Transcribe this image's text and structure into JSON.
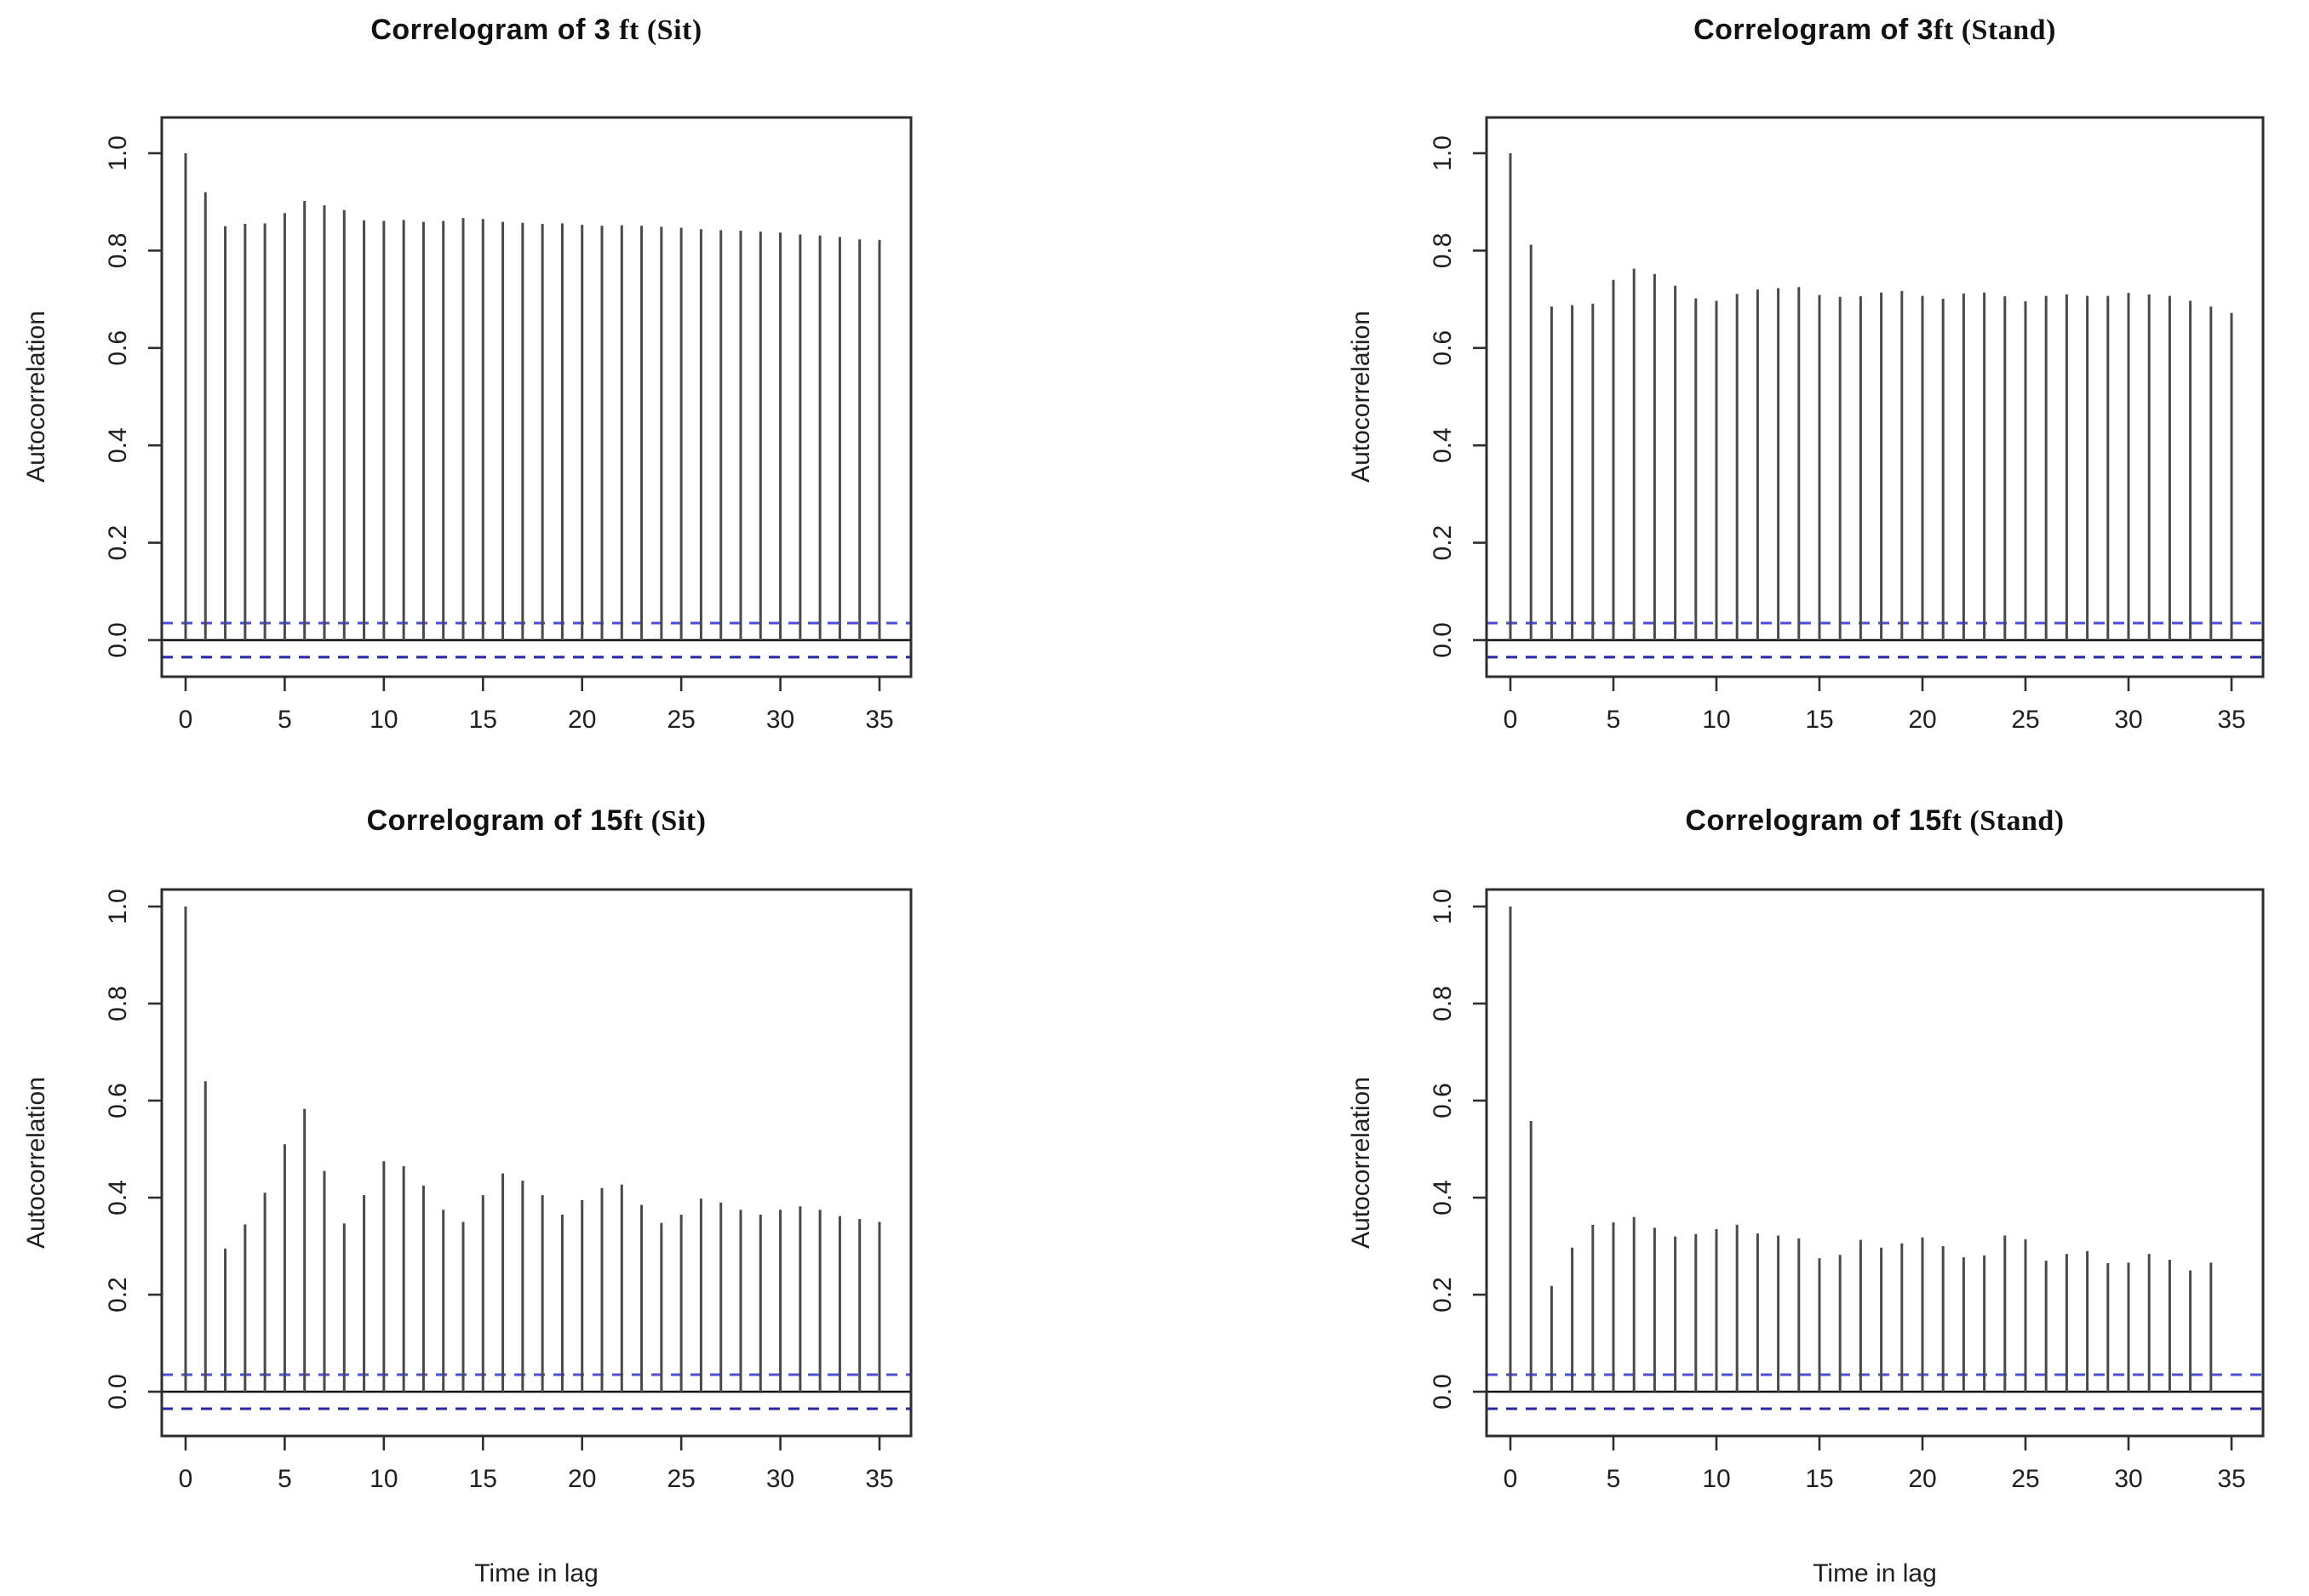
{
  "figure": {
    "background": "#ffffff",
    "bar_color": "#4a4a4a",
    "frame_color": "#2e2e2e",
    "zero_line_color": "#141414",
    "conf_upper_color": "#4c4cdb",
    "conf_lower_color": "#2828a4",
    "text_color": "#1f1f1f"
  },
  "chart_data": [
    {
      "id": "acf-3ft-sit",
      "type": "bar",
      "title": "Correlogram of 3 ft (Sit)",
      "title_sans": "Correlogram of 3 ",
      "title_serif": "ft (Sit)",
      "xlabel": "",
      "ylabel": "Autocorrelation",
      "x_ticks": [
        0,
        5,
        10,
        15,
        20,
        25,
        30,
        35
      ],
      "y_ticks": [
        "0.0",
        "0.2",
        "0.4",
        "0.6",
        "0.8",
        "1.0"
      ],
      "xlim": [
        -1.5,
        36.5
      ],
      "ylim": [
        -0.09,
        1.07
      ],
      "grid": false,
      "legend": "none",
      "conf_upper": 0.035,
      "conf_lower": -0.035,
      "lag_start": 0,
      "values": [
        1.0,
        0.92,
        0.85,
        0.855,
        0.856,
        0.877,
        0.902,
        0.893,
        0.883,
        0.862,
        0.861,
        0.863,
        0.859,
        0.861,
        0.867,
        0.865,
        0.859,
        0.857,
        0.855,
        0.856,
        0.853,
        0.851,
        0.852,
        0.851,
        0.849,
        0.847,
        0.844,
        0.842,
        0.841,
        0.839,
        0.837,
        0.833,
        0.831,
        0.828,
        0.823,
        0.822
      ]
    },
    {
      "id": "acf-3ft-stand",
      "type": "bar",
      "title": "Correlogram of 3ft (Stand)",
      "title_sans": "Correlogram of 3",
      "title_serif": "ft (Stand)",
      "xlabel": "",
      "ylabel": "Autocorrelation",
      "x_ticks": [
        0,
        5,
        10,
        15,
        20,
        25,
        30,
        35
      ],
      "y_ticks": [
        "0.0",
        "0.2",
        "0.4",
        "0.6",
        "0.8",
        "1.0"
      ],
      "xlim": [
        -1.5,
        36.5
      ],
      "ylim": [
        -0.09,
        1.07
      ],
      "grid": false,
      "legend": "none",
      "conf_upper": 0.035,
      "conf_lower": -0.035,
      "lag_start": 0,
      "values": [
        1.0,
        0.812,
        0.685,
        0.688,
        0.691,
        0.74,
        0.763,
        0.752,
        0.728,
        0.702,
        0.697,
        0.711,
        0.72,
        0.723,
        0.725,
        0.709,
        0.705,
        0.706,
        0.714,
        0.717,
        0.707,
        0.701,
        0.712,
        0.714,
        0.706,
        0.696,
        0.707,
        0.71,
        0.707,
        0.707,
        0.713,
        0.71,
        0.707,
        0.697,
        0.685,
        0.672
      ]
    },
    {
      "id": "acf-15ft-sit",
      "type": "bar",
      "title": "Correlogram of 15ft (Sit)",
      "title_sans": "Correlogram of 15",
      "title_serif": "ft (Sit)",
      "xlabel": "Time in lag",
      "ylabel": "Autocorrelation",
      "x_ticks": [
        0,
        5,
        10,
        15,
        20,
        25,
        30,
        35
      ],
      "y_ticks": [
        "0.0",
        "0.2",
        "0.4",
        "0.6",
        "0.8",
        "1.0"
      ],
      "xlim": [
        -1.5,
        36.5
      ],
      "ylim": [
        -0.09,
        1.07
      ],
      "grid": false,
      "legend": "none",
      "conf_upper": 0.035,
      "conf_lower": -0.035,
      "lag_start": 0,
      "values": [
        1.0,
        0.64,
        0.295,
        0.345,
        0.41,
        0.51,
        0.583,
        0.455,
        0.347,
        0.405,
        0.475,
        0.465,
        0.425,
        0.375,
        0.35,
        0.405,
        0.45,
        0.435,
        0.405,
        0.365,
        0.395,
        0.42,
        0.427,
        0.385,
        0.348,
        0.365,
        0.398,
        0.39,
        0.375,
        0.365,
        0.375,
        0.382,
        0.375,
        0.362,
        0.356,
        0.35
      ]
    },
    {
      "id": "acf-15ft-stand",
      "type": "bar",
      "title": "Correlogram of 15ft (Stand)",
      "title_sans": "Correlogram of 15",
      "title_serif": "ft (Stand)",
      "xlabel": "Time in lag",
      "ylabel": "Autocorrelation",
      "x_ticks": [
        0,
        5,
        10,
        15,
        20,
        25,
        30,
        35
      ],
      "y_ticks": [
        "0.0",
        "0.2",
        "0.4",
        "0.6",
        "0.8",
        "1.0"
      ],
      "xlim": [
        -1.5,
        36.5
      ],
      "ylim": [
        -0.09,
        1.07
      ],
      "grid": false,
      "legend": "none",
      "conf_upper": 0.035,
      "conf_lower": -0.035,
      "lag_start": 0,
      "values": [
        1.0,
        0.558,
        0.218,
        0.297,
        0.344,
        0.349,
        0.36,
        0.338,
        0.32,
        0.325,
        0.335,
        0.344,
        0.326,
        0.322,
        0.316,
        0.275,
        0.282,
        0.313,
        0.297,
        0.306,
        0.318,
        0.3,
        0.277,
        0.281,
        0.322,
        0.314,
        0.27,
        0.284,
        0.29,
        0.265,
        0.266,
        0.284,
        0.272,
        0.25,
        0.266
      ]
    }
  ]
}
